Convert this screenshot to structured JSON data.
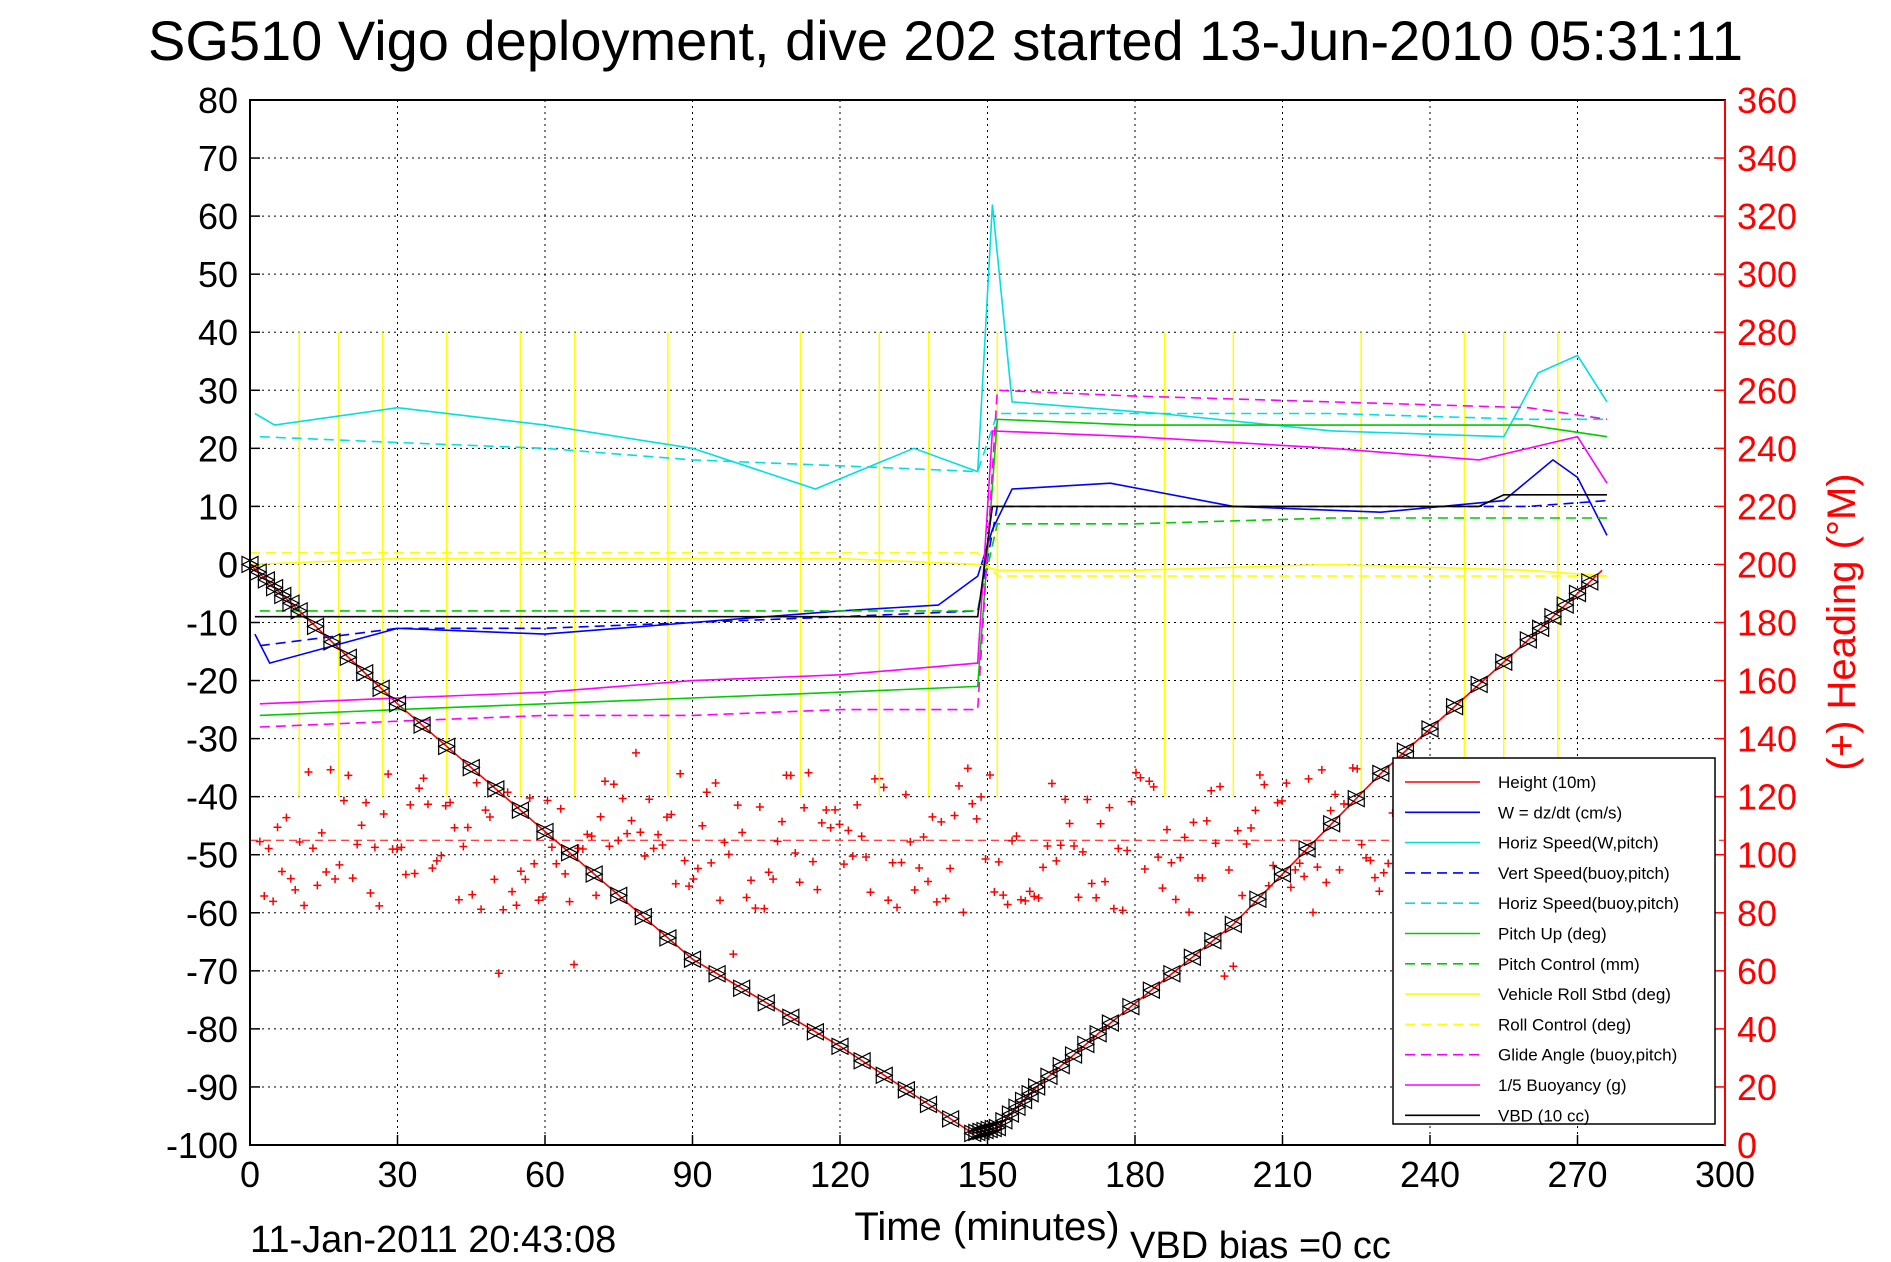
{
  "chart_data": {
    "type": "line",
    "title": "SG510 Vigo deployment, dive 202 started 13-Jun-2010 05:31:11",
    "xlabel": "Time (minutes)",
    "ylabel_right": "(+) Heading (°M)",
    "xlim": [
      0,
      300
    ],
    "ylim_left": [
      -100,
      80
    ],
    "ylim_right": [
      0,
      360
    ],
    "xticks": [
      "0",
      "30",
      "60",
      "90",
      "120",
      "150",
      "180",
      "210",
      "240",
      "270",
      "300"
    ],
    "yticks_left": [
      "80",
      "70",
      "60",
      "50",
      "40",
      "30",
      "20",
      "10",
      "0",
      "-10",
      "-20",
      "-30",
      "-40",
      "-50",
      "-60",
      "-70",
      "-80",
      "-90",
      "-100"
    ],
    "yticks_right": [
      "360",
      "340",
      "320",
      "300",
      "280",
      "260",
      "240",
      "220",
      "200",
      "180",
      "160",
      "140",
      "120",
      "100",
      "80",
      "60",
      "40",
      "20",
      "0"
    ],
    "grid": true,
    "legend_position": "bottom-right",
    "footer_date": "11-Jan-2011 20:43:08",
    "footer_bias": "VBD bias =0 cc",
    "series": [
      {
        "name": "Height (10m)",
        "color": "#ff0000",
        "style": "solid",
        "x": [
          0,
          10,
          30,
          60,
          90,
          120,
          147,
          152,
          160,
          175,
          200,
          230,
          260,
          275
        ],
        "y": [
          0,
          -8,
          -24,
          -46,
          -68,
          -83,
          -98,
          -97,
          -90,
          -79,
          -62,
          -36,
          -13,
          -1
        ]
      },
      {
        "name": "W = dz/dt (cm/s)",
        "color": "#0000ff",
        "style": "solid",
        "x": [
          1,
          4,
          30,
          60,
          90,
          120,
          140,
          148,
          151,
          155,
          175,
          200,
          230,
          255,
          265,
          270,
          276
        ],
        "y": [
          -12,
          -17,
          -11,
          -12,
          -10,
          -8,
          -7,
          -2,
          6,
          13,
          14,
          10,
          9,
          11,
          18,
          15,
          5
        ]
      },
      {
        "name": "Horiz Speed(W,pitch)",
        "color": "#00e0e0",
        "style": "solid",
        "x": [
          1,
          5,
          30,
          60,
          90,
          115,
          135,
          148,
          151,
          155,
          185,
          220,
          255,
          262,
          270,
          276
        ],
        "y": [
          26,
          24,
          27,
          24,
          20,
          13,
          20,
          16,
          62,
          28,
          26,
          23,
          22,
          33,
          36,
          28
        ]
      },
      {
        "name": "Vert Speed(buoy,pitch)",
        "color": "#0000ff",
        "style": "dashed",
        "x": [
          2,
          30,
          60,
          90,
          120,
          148,
          152,
          180,
          220,
          260,
          276
        ],
        "y": [
          -14,
          -11,
          -11,
          -10,
          -9,
          -8,
          10,
          10,
          10,
          10,
          11
        ]
      },
      {
        "name": "Horiz Speed(buoy,pitch)",
        "color": "#00e0e0",
        "style": "dashed",
        "x": [
          2,
          30,
          60,
          90,
          120,
          148,
          152,
          180,
          220,
          260,
          276
        ],
        "y": [
          22,
          21,
          20,
          18,
          17,
          16,
          26,
          26,
          26,
          25,
          25
        ]
      },
      {
        "name": "Pitch Up (deg)",
        "color": "#00cc00",
        "style": "solid",
        "x": [
          2,
          30,
          60,
          90,
          120,
          148,
          152,
          180,
          220,
          260,
          276
        ],
        "y": [
          -26,
          -25,
          -24,
          -23,
          -22,
          -21,
          25,
          24,
          24,
          24,
          22
        ]
      },
      {
        "name": "Pitch Control (mm)",
        "color": "#00cc00",
        "style": "dashed",
        "x": [
          2,
          30,
          60,
          90,
          120,
          148,
          152,
          180,
          220,
          260,
          276
        ],
        "y": [
          -8,
          -8,
          -8,
          -8,
          -8,
          -8,
          7,
          7,
          8,
          8,
          8
        ]
      },
      {
        "name": "Vehicle Roll Stbd (deg)",
        "color": "#ffff00",
        "style": "solid",
        "x": [
          0,
          30,
          60,
          90,
          120,
          148,
          152,
          180,
          220,
          260,
          276
        ],
        "y": [
          0,
          1,
          1,
          1,
          1,
          0,
          -1,
          -1,
          0,
          -1,
          -2
        ]
      },
      {
        "name": "Roll Control (deg)",
        "color": "#ffff00",
        "style": "dashed",
        "x": [
          0,
          30,
          60,
          90,
          120,
          148,
          152,
          180,
          220,
          260,
          276
        ],
        "y": [
          2,
          2,
          2,
          2,
          2,
          2,
          -2,
          -2,
          -2,
          -2,
          -2
        ]
      },
      {
        "name": "Glide Angle (buoy,pitch)",
        "color": "#ff00ff",
        "style": "dashed",
        "x": [
          2,
          30,
          60,
          90,
          120,
          148,
          152,
          180,
          220,
          260,
          276
        ],
        "y": [
          -28,
          -27,
          -26,
          -26,
          -25,
          -25,
          30,
          29,
          28,
          27,
          25
        ]
      },
      {
        "name": "1/5 Buoyancy (g)",
        "color": "#ff00ff",
        "style": "solid",
        "x": [
          2,
          30,
          60,
          90,
          120,
          148,
          151,
          180,
          220,
          250,
          270,
          276
        ],
        "y": [
          -24,
          -23,
          -22,
          -20,
          -19,
          -17,
          23,
          22,
          20,
          18,
          22,
          14
        ]
      },
      {
        "name": "VBD (10 cc)",
        "color": "#000000",
        "style": "solid",
        "x": [
          1,
          148,
          151,
          250,
          255,
          276
        ],
        "y": [
          -9,
          -9,
          10,
          10,
          12,
          12
        ]
      }
    ],
    "heading": {
      "name": "Heading",
      "color": "#ff0000",
      "mean": 105,
      "axis": "right"
    },
    "markers_triangle": {
      "color": "#000000",
      "on_series": "Height (10m)"
    }
  }
}
